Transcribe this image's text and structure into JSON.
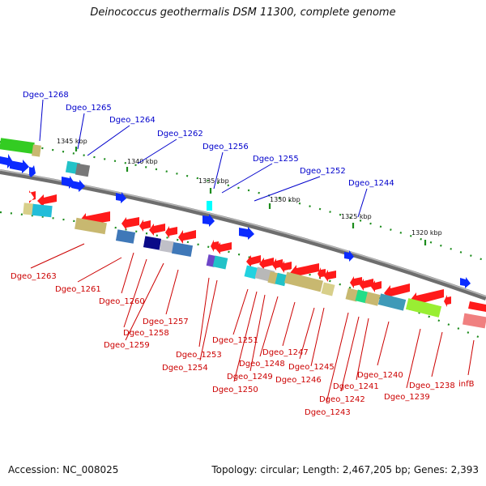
{
  "title": "Deinococcus geothermalis DSM 11300, complete genome",
  "footer": {
    "accession": "Accession: NC_008025",
    "topology": "Topology: circular; Length: 2,467,205 bp; Genes: 2,393"
  },
  "colors": {
    "upper_labels": "#0000cc",
    "lower_labels": "#cc0000",
    "backbone": "#7a7a7a"
  },
  "scale_ticks": [
    {
      "id": "1345",
      "label": "1345 kbp"
    },
    {
      "id": "1340",
      "label": "1340 kbp"
    },
    {
      "id": "1335",
      "label": "1335 kbp"
    },
    {
      "id": "1330",
      "label": "1330 kbp"
    },
    {
      "id": "1325",
      "label": "1325 kbp"
    },
    {
      "id": "1320",
      "label": "1320 kbp"
    }
  ],
  "upper_gene_labels": [
    {
      "id": "1268",
      "name": "Dgeo_1268"
    },
    {
      "id": "1265",
      "name": "Dgeo_1265"
    },
    {
      "id": "1264",
      "name": "Dgeo_1264"
    },
    {
      "id": "1262",
      "name": "Dgeo_1262"
    },
    {
      "id": "1256",
      "name": "Dgeo_1256"
    },
    {
      "id": "1255",
      "name": "Dgeo_1255"
    },
    {
      "id": "1252",
      "name": "Dgeo_1252"
    },
    {
      "id": "1244",
      "name": "Dgeo_1244"
    }
  ],
  "lower_gene_labels": [
    {
      "id": "1263",
      "name": "Dgeo_1263"
    },
    {
      "id": "1261",
      "name": "Dgeo_1261"
    },
    {
      "id": "1260",
      "name": "Dgeo_1260"
    },
    {
      "id": "1257",
      "name": "Dgeo_1257"
    },
    {
      "id": "1258",
      "name": "Dgeo_1258"
    },
    {
      "id": "1259",
      "name": "Dgeo_1259"
    },
    {
      "id": "1253",
      "name": "Dgeo_1253"
    },
    {
      "id": "1254",
      "name": "Dgeo_1254"
    },
    {
      "id": "1251",
      "name": "Dgeo_1251"
    },
    {
      "id": "1248",
      "name": "Dgeo_1248"
    },
    {
      "id": "1249",
      "name": "Dgeo_1249"
    },
    {
      "id": "1250",
      "name": "Dgeo_1250"
    },
    {
      "id": "1247",
      "name": "Dgeo_1247"
    },
    {
      "id": "1245",
      "name": "Dgeo_1245"
    },
    {
      "id": "1246",
      "name": "Dgeo_1246"
    },
    {
      "id": "1243",
      "name": "Dgeo_1243"
    },
    {
      "id": "1242",
      "name": "Dgeo_1242"
    },
    {
      "id": "1241",
      "name": "Dgeo_1241"
    },
    {
      "id": "1240",
      "name": "Dgeo_1240"
    },
    {
      "id": "1239",
      "name": "Dgeo_1239"
    },
    {
      "id": "1238",
      "name": "Dgeo_1238"
    },
    {
      "id": "infB",
      "name": "infB"
    }
  ]
}
